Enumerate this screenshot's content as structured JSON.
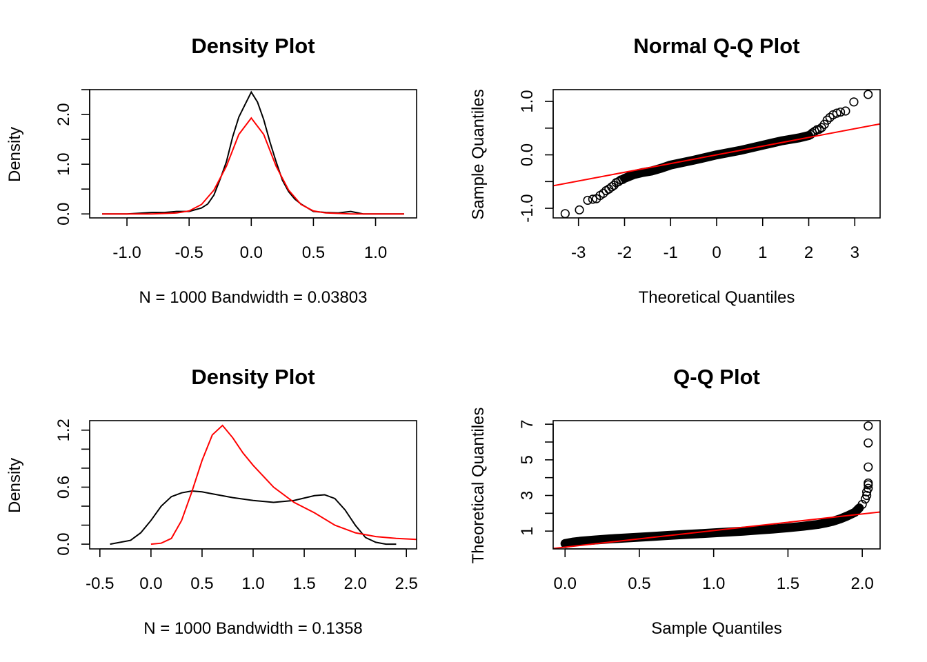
{
  "colors": {
    "black": "#000000",
    "red": "#ff0000",
    "background": "#ffffff"
  },
  "chart_data": [
    {
      "type": "line",
      "title": "Density Plot",
      "xlabel": "N = 1000   Bandwidth = 0.03803",
      "ylabel": "Density",
      "xlim": [
        -1.3,
        1.33
      ],
      "ylim": [
        -0.08,
        2.5
      ],
      "xticks": [
        -1.0,
        -0.5,
        0.0,
        0.5,
        1.0
      ],
      "xtick_labels": [
        "-1.0",
        "-0.5",
        "0.0",
        "0.5",
        "1.0"
      ],
      "yticks": [
        0.0,
        0.5,
        1.0,
        1.5,
        2.0,
        2.5
      ],
      "ytick_labels": [
        "0.0",
        "",
        "1.0",
        "",
        "2.0",
        ""
      ],
      "grid": false,
      "series": [
        {
          "color": "#000000",
          "x": [
            -1.2,
            -1.0,
            -0.8,
            -0.7,
            -0.6,
            -0.5,
            -0.4,
            -0.35,
            -0.3,
            -0.25,
            -0.2,
            -0.15,
            -0.1,
            -0.05,
            0.0,
            0.05,
            0.1,
            0.15,
            0.2,
            0.25,
            0.3,
            0.35,
            0.4,
            0.5,
            0.6,
            0.7,
            0.8,
            0.9,
            1.0,
            1.23
          ],
          "y": [
            0.0,
            0.0,
            0.03,
            0.03,
            0.05,
            0.05,
            0.12,
            0.2,
            0.38,
            0.7,
            1.05,
            1.55,
            1.95,
            2.2,
            2.45,
            2.25,
            1.9,
            1.45,
            1.05,
            0.68,
            0.45,
            0.3,
            0.2,
            0.05,
            0.03,
            0.02,
            0.05,
            0.0,
            0.0,
            0.0
          ]
        },
        {
          "color": "#ff0000",
          "x": [
            -1.2,
            -1.0,
            -0.8,
            -0.6,
            -0.5,
            -0.4,
            -0.3,
            -0.2,
            -0.1,
            0.0,
            0.1,
            0.2,
            0.3,
            0.4,
            0.5,
            0.6,
            0.8,
            1.0,
            1.23
          ],
          "y": [
            0.0,
            0.0,
            0.0,
            0.02,
            0.06,
            0.19,
            0.48,
            0.96,
            1.6,
            1.93,
            1.6,
            0.96,
            0.48,
            0.19,
            0.06,
            0.02,
            0.0,
            0.0,
            0.0
          ]
        }
      ]
    },
    {
      "type": "scatter",
      "title": "Normal Q-Q Plot",
      "xlabel": "Theoretical Quantiles",
      "ylabel": "Sample Quantiles",
      "xlim": [
        -3.55,
        3.55
      ],
      "ylim": [
        -1.18,
        1.22
      ],
      "xticks": [
        -3,
        -2,
        -1,
        0,
        1,
        2,
        3
      ],
      "xtick_labels": [
        "-3",
        "-2",
        "-1",
        "0",
        "1",
        "2",
        "3"
      ],
      "yticks": [
        -1.0,
        -0.5,
        0.0,
        0.5,
        1.0
      ],
      "ytick_labels": [
        "-1.0",
        "",
        "0.0",
        "",
        "1.0"
      ],
      "grid": false,
      "points_x": [
        -3.29,
        -2.98,
        -2.8,
        -2.69,
        -2.61,
        -2.53,
        -2.46,
        -2.4,
        -2.34,
        -2.28,
        -2.23,
        -2.18,
        -2.13,
        -2.08,
        -2.04,
        2.04,
        2.08,
        2.13,
        2.18,
        2.23,
        2.28,
        2.34,
        2.4,
        2.46,
        2.53,
        2.61,
        2.69,
        2.8,
        2.98,
        3.29
      ],
      "points_y": [
        -1.1,
        -1.03,
        -0.85,
        -0.83,
        -0.82,
        -0.76,
        -0.72,
        -0.67,
        -0.64,
        -0.6,
        -0.57,
        -0.52,
        -0.5,
        -0.47,
        -0.46,
        0.38,
        0.41,
        0.44,
        0.47,
        0.48,
        0.51,
        0.57,
        0.65,
        0.7,
        0.75,
        0.78,
        0.8,
        0.82,
        0.99,
        1.13
      ],
      "body_curve_x": [
        -2.0,
        -1.8,
        -1.6,
        -1.4,
        -1.2,
        -1.0,
        -0.5,
        0.0,
        0.5,
        1.0,
        1.2,
        1.4,
        1.6,
        1.8,
        2.0
      ],
      "body_curve_y": [
        -0.44,
        -0.37,
        -0.33,
        -0.3,
        -0.25,
        -0.19,
        -0.1,
        0.0,
        0.08,
        0.18,
        0.22,
        0.26,
        0.29,
        0.32,
        0.36
      ],
      "reference_line": {
        "color": "#ff0000",
        "slope": 0.163,
        "intercept": 0.0
      }
    },
    {
      "type": "line",
      "title": "Density Plot",
      "xlabel": "N = 1000   Bandwidth = 0.1358",
      "ylabel": "Density",
      "xlim": [
        -0.6,
        2.6
      ],
      "ylim": [
        -0.05,
        1.3
      ],
      "xticks": [
        -0.5,
        0.0,
        0.5,
        1.0,
        1.5,
        2.0,
        2.5
      ],
      "xtick_labels": [
        "-0.5",
        "0.0",
        "0.5",
        "1.0",
        "1.5",
        "2.0",
        "2.5"
      ],
      "yticks": [
        0.0,
        0.2,
        0.4,
        0.6,
        0.8,
        1.0,
        1.2
      ],
      "ytick_labels": [
        "0.0",
        "",
        "",
        "0.6",
        "",
        "",
        "1.2"
      ],
      "grid": false,
      "series": [
        {
          "color": "#000000",
          "x": [
            -0.4,
            -0.2,
            -0.1,
            0.0,
            0.1,
            0.2,
            0.3,
            0.4,
            0.5,
            0.6,
            0.8,
            1.0,
            1.2,
            1.4,
            1.6,
            1.7,
            1.8,
            1.9,
            2.0,
            2.1,
            2.2,
            2.3,
            2.4
          ],
          "y": [
            0.0,
            0.04,
            0.12,
            0.25,
            0.4,
            0.5,
            0.54,
            0.56,
            0.55,
            0.53,
            0.49,
            0.46,
            0.44,
            0.46,
            0.51,
            0.52,
            0.48,
            0.36,
            0.2,
            0.07,
            0.02,
            0.0,
            0.0
          ]
        },
        {
          "color": "#ff0000",
          "x": [
            0.0,
            0.1,
            0.2,
            0.3,
            0.4,
            0.5,
            0.6,
            0.7,
            0.8,
            0.9,
            1.0,
            1.2,
            1.4,
            1.6,
            1.8,
            2.0,
            2.2,
            2.4,
            2.6
          ],
          "y": [
            0.0,
            0.01,
            0.06,
            0.25,
            0.55,
            0.88,
            1.15,
            1.25,
            1.12,
            0.96,
            0.83,
            0.6,
            0.44,
            0.33,
            0.2,
            0.12,
            0.08,
            0.06,
            0.05
          ]
        }
      ]
    },
    {
      "type": "scatter",
      "title": "Q-Q Plot",
      "xlabel": "Sample Quantiles",
      "ylabel": "Theoretical Quantiles",
      "xlim": [
        -0.08,
        2.12
      ],
      "ylim": [
        0.0,
        7.2
      ],
      "xticks": [
        0.0,
        0.5,
        1.0,
        1.5,
        2.0
      ],
      "xtick_labels": [
        "0.0",
        "0.5",
        "1.0",
        "1.5",
        "2.0"
      ],
      "yticks": [
        1,
        2,
        3,
        4,
        5,
        6,
        7
      ],
      "ytick_labels": [
        "1",
        "",
        "3",
        "",
        "5",
        "",
        "7"
      ],
      "grid": false,
      "points_x": [
        2.0,
        2.02,
        2.03,
        2.03,
        2.04,
        2.04,
        2.04,
        2.04,
        2.04,
        2.04
      ],
      "points_y": [
        2.5,
        2.8,
        3.0,
        3.2,
        3.4,
        3.6,
        3.7,
        4.6,
        5.95,
        6.9
      ],
      "body_curve_x": [
        0.0,
        0.05,
        0.1,
        0.2,
        0.3,
        0.4,
        0.5,
        0.6,
        0.7,
        0.8,
        0.9,
        1.0,
        1.1,
        1.2,
        1.3,
        1.4,
        1.5,
        1.6,
        1.7,
        1.75,
        1.8,
        1.85,
        1.9,
        1.95,
        1.98
      ],
      "body_curve_y": [
        0.3,
        0.38,
        0.43,
        0.5,
        0.56,
        0.61,
        0.66,
        0.71,
        0.76,
        0.81,
        0.85,
        0.9,
        0.95,
        1.0,
        1.06,
        1.12,
        1.19,
        1.27,
        1.37,
        1.45,
        1.55,
        1.68,
        1.85,
        2.05,
        2.3
      ],
      "reference_line": {
        "color": "#ff0000",
        "slope": 0.93,
        "intercept": 0.1
      }
    }
  ]
}
